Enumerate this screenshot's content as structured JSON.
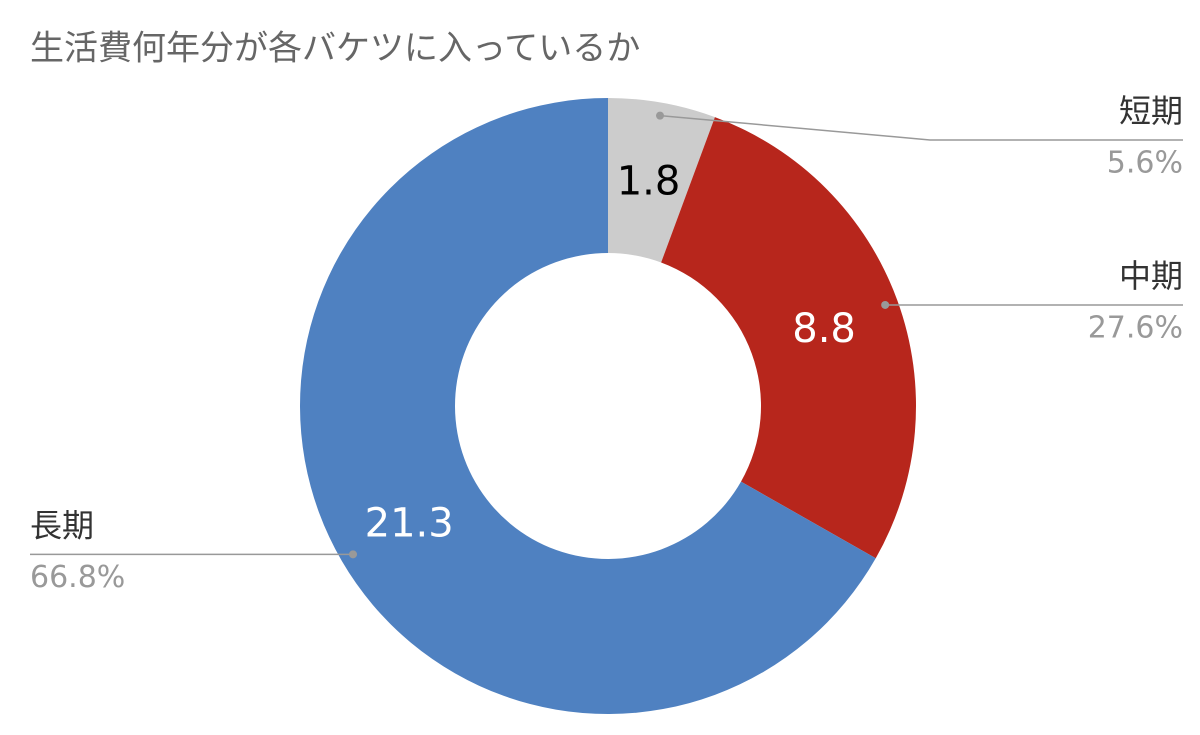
{
  "chart_data": {
    "type": "donut",
    "title": "生活費何年分が各バケツに入っているか",
    "categories": [
      "短期",
      "中期",
      "長期"
    ],
    "values": [
      1.8,
      8.8,
      21.3
    ],
    "percent_labels": [
      "5.6%",
      "27.6%",
      "66.8%"
    ],
    "colors": [
      "#cccccc",
      "#b7261c",
      "#4f81c1"
    ]
  }
}
